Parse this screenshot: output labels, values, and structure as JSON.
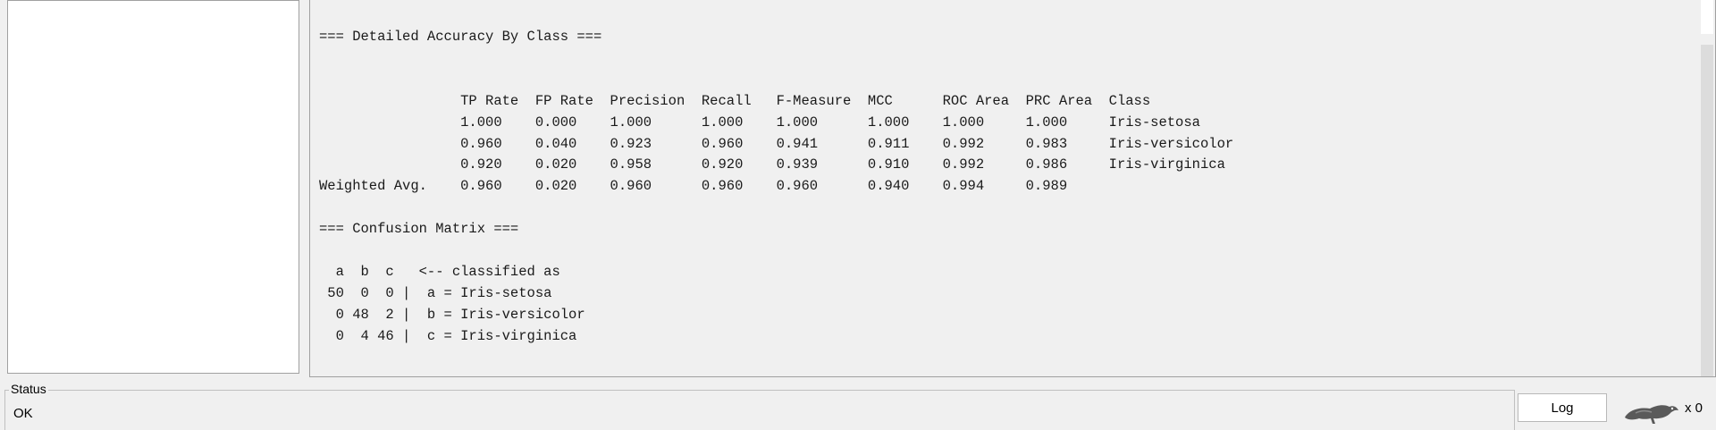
{
  "output": {
    "lines": [
      "=== Detailed Accuracy By Class ===",
      "",
      "",
      "                 TP Rate  FP Rate  Precision  Recall   F-Measure  MCC      ROC Area  PRC Area  Class",
      "                 1.000    0.000    1.000      1.000    1.000      1.000    1.000     1.000     Iris-setosa",
      "                 0.960    0.040    0.923      0.960    0.941      0.911    0.992     0.983     Iris-versicolor",
      "                 0.920    0.020    0.958      0.920    0.939      0.910    0.992     0.986     Iris-virginica",
      "Weighted Avg.    0.960    0.020    0.960      0.960    0.960      0.940    0.994     0.989",
      "",
      "=== Confusion Matrix ===",
      "",
      "  a  b  c   <-- classified as",
      " 50  0  0 |  a = Iris-setosa",
      "  0 48  2 |  b = Iris-versicolor",
      "  0  4 46 |  c = Iris-virginica"
    ]
  },
  "status": {
    "title": "Status",
    "message": "OK"
  },
  "log_button": {
    "label": "Log"
  },
  "task_count": "x 0",
  "icons": {
    "bird": "weka-bird-icon"
  }
}
